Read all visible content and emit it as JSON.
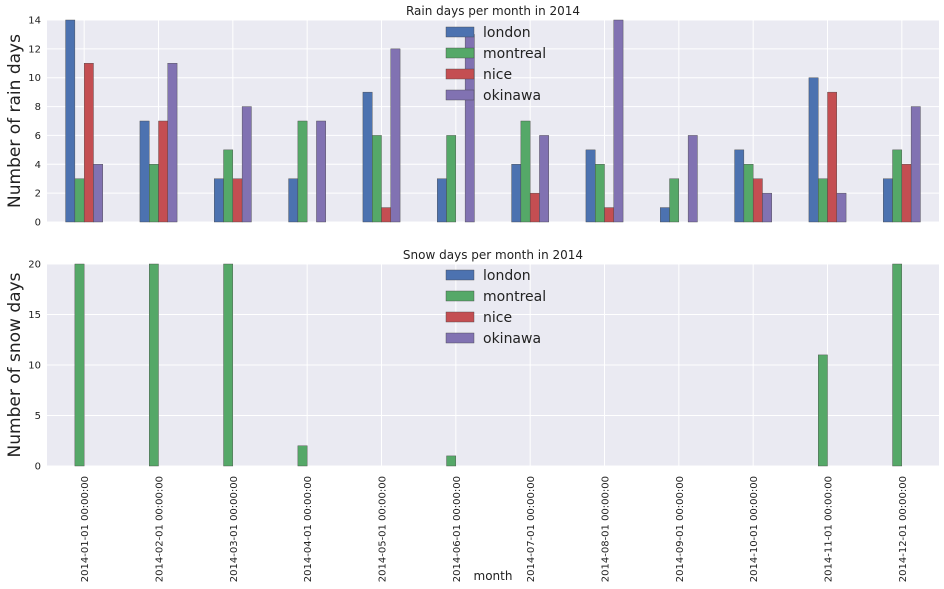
{
  "chart_data": [
    {
      "type": "bar",
      "title": "Rain days per month in 2014",
      "xlabel": "",
      "ylabel": "Number of rain days",
      "ylim": [
        0,
        14
      ],
      "yticks": [
        0,
        2,
        4,
        6,
        8,
        10,
        12,
        14
      ],
      "grid": true,
      "legend_position": "top-center",
      "categories": [
        "2014-01-01 00:00:00",
        "2014-02-01 00:00:00",
        "2014-03-01 00:00:00",
        "2014-04-01 00:00:00",
        "2014-05-01 00:00:00",
        "2014-06-01 00:00:00",
        "2014-07-01 00:00:00",
        "2014-08-01 00:00:00",
        "2014-09-01 00:00:00",
        "2014-10-01 00:00:00",
        "2014-11-01 00:00:00",
        "2014-12-01 00:00:00"
      ],
      "series": [
        {
          "name": "london",
          "color": "#4c72b0",
          "values": [
            14,
            7,
            3,
            3,
            9,
            3,
            4,
            5,
            1,
            5,
            10,
            3
          ]
        },
        {
          "name": "montreal",
          "color": "#55a868",
          "values": [
            3,
            4,
            5,
            7,
            6,
            6,
            7,
            4,
            3,
            4,
            3,
            5
          ]
        },
        {
          "name": "nice",
          "color": "#c44e52",
          "values": [
            11,
            7,
            3,
            0,
            1,
            0,
            2,
            1,
            0,
            3,
            9,
            4
          ]
        },
        {
          "name": "okinawa",
          "color": "#8172b2",
          "values": [
            4,
            11,
            8,
            7,
            12,
            13,
            6,
            14,
            6,
            2,
            2,
            8
          ]
        }
      ]
    },
    {
      "type": "bar",
      "title": "Snow days per month in 2014",
      "xlabel": "month",
      "ylabel": "Number of snow days",
      "ylim": [
        0,
        20
      ],
      "yticks": [
        0,
        5,
        10,
        15,
        20
      ],
      "grid": true,
      "legend_position": "top-center",
      "categories": [
        "2014-01-01 00:00:00",
        "2014-02-01 00:00:00",
        "2014-03-01 00:00:00",
        "2014-04-01 00:00:00",
        "2014-05-01 00:00:00",
        "2014-06-01 00:00:00",
        "2014-07-01 00:00:00",
        "2014-08-01 00:00:00",
        "2014-09-01 00:00:00",
        "2014-10-01 00:00:00",
        "2014-11-01 00:00:00",
        "2014-12-01 00:00:00"
      ],
      "series": [
        {
          "name": "london",
          "color": "#4c72b0",
          "values": [
            0,
            0,
            0,
            0,
            0,
            0,
            0,
            0,
            0,
            0,
            0,
            0
          ]
        },
        {
          "name": "montreal",
          "color": "#55a868",
          "values": [
            20,
            20,
            20,
            2,
            0,
            1,
            0,
            0,
            0,
            0,
            11,
            20
          ]
        },
        {
          "name": "nice",
          "color": "#c44e52",
          "values": [
            0,
            0,
            0,
            0,
            0,
            0,
            0,
            0,
            0,
            0,
            0,
            0
          ]
        },
        {
          "name": "okinawa",
          "color": "#8172b2",
          "values": [
            0,
            0,
            0,
            0,
            0,
            0,
            0,
            0,
            0,
            0,
            0,
            0
          ]
        }
      ]
    }
  ],
  "style": {
    "plot_background": "#eaeaf2",
    "grid_color": "#ffffff"
  }
}
